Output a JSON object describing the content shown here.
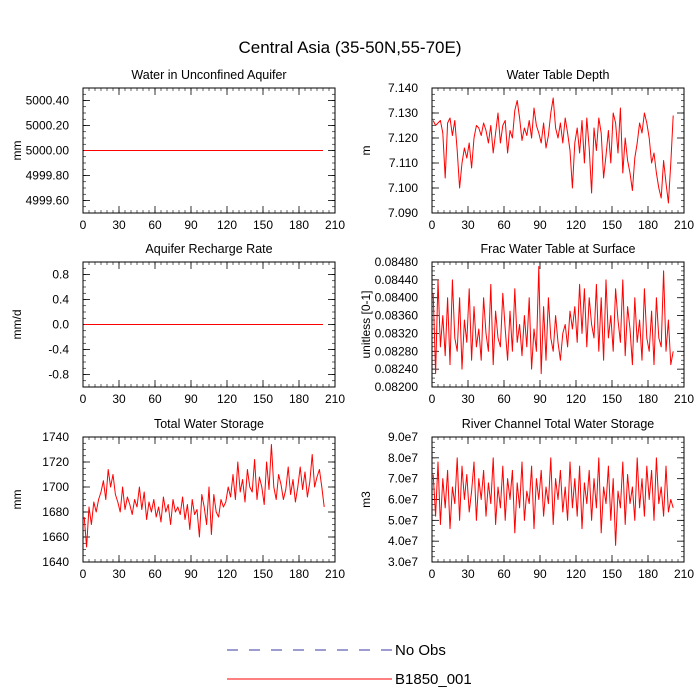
{
  "figure": {
    "title": "Central Asia (35-50N,55-70E)",
    "legend": {
      "items": [
        {
          "label": "No Obs",
          "color": "#3a3aa0",
          "dash": "dashed"
        },
        {
          "label": "B1850_001",
          "color": "#ff0000",
          "dash": "solid"
        }
      ]
    }
  },
  "chart_data": [
    {
      "type": "line",
      "title": "Water in Unconfined Aquifer",
      "ylabel": "mm",
      "xlim": [
        0,
        210
      ],
      "ylim": [
        4999.5,
        5000.5
      ],
      "xticks": [
        "0",
        "30",
        "60",
        "90",
        "120",
        "150",
        "180",
        "210"
      ],
      "yticks": [
        "4999.60",
        "4999.80",
        "5000.00",
        "5000.20",
        "5000.40"
      ],
      "yticks_values": [
        4999.6,
        4999.8,
        5000.0,
        5000.2,
        5000.4
      ],
      "series": [
        {
          "name": "B1850_001",
          "color": "#ff0000",
          "x": [
            1,
            200
          ],
          "y": [
            5000.0,
            5000.0
          ]
        }
      ]
    },
    {
      "type": "line",
      "title": "Water Table Depth",
      "ylabel": "m",
      "xlim": [
        0,
        210
      ],
      "ylim": [
        7.09,
        7.14
      ],
      "xticks": [
        "0",
        "30",
        "60",
        "90",
        "120",
        "150",
        "180",
        "210"
      ],
      "yticks": [
        "7.090",
        "7.100",
        "7.110",
        "7.120",
        "7.130",
        "7.140"
      ],
      "yticks_values": [
        7.09,
        7.1,
        7.11,
        7.12,
        7.13,
        7.14
      ],
      "series": [
        {
          "name": "B1850_001",
          "color": "#ff0000",
          "x": [
            1,
            3,
            5,
            7,
            9,
            11,
            13,
            15,
            17,
            19,
            21,
            23,
            25,
            27,
            29,
            31,
            33,
            35,
            37,
            39,
            41,
            43,
            45,
            47,
            49,
            51,
            53,
            55,
            57,
            59,
            61,
            63,
            65,
            67,
            69,
            71,
            73,
            75,
            77,
            79,
            81,
            83,
            85,
            87,
            89,
            91,
            93,
            95,
            97,
            99,
            101,
            103,
            105,
            107,
            109,
            111,
            113,
            115,
            117,
            119,
            121,
            123,
            125,
            127,
            129,
            131,
            133,
            135,
            137,
            139,
            141,
            143,
            145,
            147,
            149,
            151,
            153,
            155,
            157,
            159,
            161,
            163,
            165,
            167,
            169,
            171,
            173,
            175,
            177,
            179,
            181,
            183,
            185,
            187,
            189,
            191,
            193,
            195,
            197,
            199,
            201
          ],
          "y": [
            7.127,
            7.125,
            7.126,
            7.127,
            7.122,
            7.104,
            7.126,
            7.128,
            7.121,
            7.127,
            7.115,
            7.1,
            7.11,
            7.116,
            7.112,
            7.118,
            7.108,
            7.12,
            7.125,
            7.124,
            7.121,
            7.126,
            7.123,
            7.118,
            7.125,
            7.114,
            7.122,
            7.13,
            7.118,
            7.125,
            7.127,
            7.114,
            7.123,
            7.12,
            7.131,
            7.135,
            7.128,
            7.119,
            7.124,
            7.121,
            7.127,
            7.12,
            7.132,
            7.125,
            7.122,
            7.118,
            7.126,
            7.116,
            7.121,
            7.13,
            7.136,
            7.124,
            7.12,
            7.126,
            7.118,
            7.128,
            7.122,
            7.115,
            7.1,
            7.118,
            7.124,
            7.114,
            7.127,
            7.11,
            7.128,
            7.116,
            7.098,
            7.124,
            7.115,
            7.128,
            7.122,
            7.104,
            7.113,
            7.123,
            7.11,
            7.13,
            7.126,
            7.114,
            7.132,
            7.106,
            7.12,
            7.111,
            7.106,
            7.099,
            7.112,
            7.118,
            7.126,
            7.122,
            7.13,
            7.126,
            7.12,
            7.11,
            7.114,
            7.106,
            7.1,
            7.096,
            7.111,
            7.102,
            7.094,
            7.11,
            7.129
          ]
        }
      ]
    },
    {
      "type": "line",
      "title": "Aquifer Recharge Rate",
      "ylabel": "mm/d",
      "xlim": [
        0,
        210
      ],
      "ylim": [
        -1.0,
        1.0
      ],
      "xticks": [
        "0",
        "30",
        "60",
        "90",
        "120",
        "150",
        "180",
        "210"
      ],
      "yticks": [
        "-0.8",
        "-0.4",
        "0.0",
        "0.4",
        "0.8"
      ],
      "yticks_values": [
        -0.8,
        -0.4,
        0.0,
        0.4,
        0.8
      ],
      "series": [
        {
          "name": "B1850_001",
          "color": "#ff0000",
          "x": [
            1,
            200
          ],
          "y": [
            0.0,
            0.0
          ]
        }
      ]
    },
    {
      "type": "line",
      "title": "Frac Water Table at Surface",
      "ylabel": "unitless [0-1]",
      "xlim": [
        0,
        210
      ],
      "ylim": [
        0.082,
        0.0848
      ],
      "xticks": [
        "0",
        "30",
        "60",
        "90",
        "120",
        "150",
        "180",
        "210"
      ],
      "yticks": [
        "0.08200",
        "0.08240",
        "0.08280",
        "0.08320",
        "0.08360",
        "0.08400",
        "0.08440",
        "0.08480"
      ],
      "yticks_values": [
        0.082,
        0.0824,
        0.0828,
        0.0832,
        0.0836,
        0.084,
        0.0844,
        0.0848
      ],
      "series": [
        {
          "name": "B1850_001",
          "color": "#ff0000",
          "x": [
            1,
            3,
            5,
            7,
            9,
            11,
            13,
            15,
            17,
            19,
            21,
            23,
            25,
            27,
            29,
            31,
            33,
            35,
            37,
            39,
            41,
            43,
            45,
            47,
            49,
            51,
            53,
            55,
            57,
            59,
            61,
            63,
            65,
            67,
            69,
            71,
            73,
            75,
            77,
            79,
            81,
            83,
            85,
            87,
            89,
            91,
            93,
            95,
            97,
            99,
            101,
            103,
            105,
            107,
            109,
            111,
            113,
            115,
            117,
            119,
            121,
            123,
            125,
            127,
            129,
            131,
            133,
            135,
            137,
            139,
            141,
            143,
            145,
            147,
            149,
            151,
            153,
            155,
            157,
            159,
            161,
            163,
            165,
            167,
            169,
            171,
            173,
            175,
            177,
            179,
            181,
            183,
            185,
            187,
            189,
            191,
            193,
            195,
            197,
            199,
            201
          ],
          "y": [
            0.0841,
            0.0823,
            0.0844,
            0.0829,
            0.0836,
            0.0827,
            0.084,
            0.0825,
            0.0844,
            0.0831,
            0.0828,
            0.084,
            0.0824,
            0.0835,
            0.083,
            0.0842,
            0.0826,
            0.0838,
            0.0829,
            0.0833,
            0.0826,
            0.084,
            0.0832,
            0.0828,
            0.0843,
            0.0825,
            0.0837,
            0.0831,
            0.0829,
            0.0841,
            0.0833,
            0.0826,
            0.0837,
            0.0828,
            0.0842,
            0.083,
            0.0834,
            0.0827,
            0.0836,
            0.0829,
            0.084,
            0.0824,
            0.0833,
            0.0828,
            0.0847,
            0.0823,
            0.0838,
            0.0826,
            0.084,
            0.0831,
            0.0828,
            0.0836,
            0.083,
            0.0826,
            0.0832,
            0.0834,
            0.0829,
            0.0837,
            0.0833,
            0.0838,
            0.083,
            0.0843,
            0.0832,
            0.0842,
            0.0829,
            0.084,
            0.0834,
            0.0831,
            0.0843,
            0.0828,
            0.084,
            0.0826,
            0.0844,
            0.0831,
            0.0836,
            0.0828,
            0.0842,
            0.0835,
            0.083,
            0.0844,
            0.0827,
            0.0838,
            0.0833,
            0.0825,
            0.084,
            0.083,
            0.0835,
            0.0826,
            0.0842,
            0.0831,
            0.0828,
            0.0837,
            0.0825,
            0.084,
            0.0831,
            0.0829,
            0.0846,
            0.0828,
            0.0835,
            0.0825,
            0.0828
          ]
        }
      ]
    },
    {
      "type": "line",
      "title": "Total Water Storage",
      "ylabel": "mm",
      "xlim": [
        0,
        210
      ],
      "ylim": [
        1640,
        1740
      ],
      "xticks": [
        "0",
        "30",
        "60",
        "90",
        "120",
        "150",
        "180",
        "210"
      ],
      "yticks": [
        "1640",
        "1660",
        "1680",
        "1700",
        "1720",
        "1740"
      ],
      "yticks_values": [
        1640,
        1660,
        1680,
        1700,
        1720,
        1740
      ],
      "series": [
        {
          "name": "B1850_001",
          "color": "#ff0000",
          "x": [
            1,
            3,
            5,
            7,
            9,
            11,
            13,
            15,
            17,
            19,
            21,
            23,
            25,
            27,
            29,
            31,
            33,
            35,
            37,
            39,
            41,
            43,
            45,
            47,
            49,
            51,
            53,
            55,
            57,
            59,
            61,
            63,
            65,
            67,
            69,
            71,
            73,
            75,
            77,
            79,
            81,
            83,
            85,
            87,
            89,
            91,
            93,
            95,
            97,
            99,
            101,
            103,
            105,
            107,
            109,
            111,
            113,
            115,
            117,
            119,
            121,
            123,
            125,
            127,
            129,
            131,
            133,
            135,
            137,
            139,
            141,
            143,
            145,
            147,
            149,
            151,
            153,
            155,
            157,
            159,
            161,
            163,
            165,
            167,
            169,
            171,
            173,
            175,
            177,
            179,
            181,
            183,
            185,
            187,
            189,
            191,
            193,
            195,
            197,
            199,
            201
          ],
          "y": [
            1676,
            1652,
            1684,
            1670,
            1688,
            1680,
            1690,
            1696,
            1705,
            1690,
            1714,
            1700,
            1710,
            1694,
            1688,
            1680,
            1700,
            1682,
            1692,
            1686,
            1678,
            1690,
            1684,
            1700,
            1682,
            1696,
            1674,
            1688,
            1680,
            1690,
            1676,
            1684,
            1672,
            1692,
            1680,
            1686,
            1670,
            1690,
            1680,
            1684,
            1678,
            1692,
            1674,
            1686,
            1666,
            1690,
            1678,
            1682,
            1660,
            1694,
            1684,
            1670,
            1700,
            1662,
            1694,
            1680,
            1676,
            1690,
            1684,
            1688,
            1700,
            1692,
            1710,
            1690,
            1720,
            1696,
            1706,
            1688,
            1714,
            1700,
            1696,
            1722,
            1690,
            1708,
            1700,
            1686,
            1720,
            1698,
            1734,
            1700,
            1690,
            1710,
            1702,
            1690,
            1698,
            1716,
            1694,
            1706,
            1688,
            1700,
            1716,
            1698,
            1712,
            1692,
            1704,
            1726,
            1700,
            1708,
            1714,
            1700,
            1684
          ]
        }
      ]
    },
    {
      "type": "line",
      "title": "River Channel Total Water Storage",
      "ylabel": "m3",
      "xlim": [
        0,
        210
      ],
      "ylim": [
        30000000,
        90000000
      ],
      "xticks": [
        "0",
        "30",
        "60",
        "90",
        "120",
        "150",
        "180",
        "210"
      ],
      "yticks": [
        "3.0e7",
        "4.0e7",
        "5.0e7",
        "6.0e7",
        "7.0e7",
        "8.0e7",
        "9.0e7"
      ],
      "yticks_values": [
        30000000,
        40000000,
        50000000,
        60000000,
        70000000,
        80000000,
        90000000
      ],
      "series": [
        {
          "name": "B1850_001",
          "color": "#ff0000",
          "x": [
            1,
            3,
            5,
            7,
            9,
            11,
            13,
            15,
            17,
            19,
            21,
            23,
            25,
            27,
            29,
            31,
            33,
            35,
            37,
            39,
            41,
            43,
            45,
            47,
            49,
            51,
            53,
            55,
            57,
            59,
            61,
            63,
            65,
            67,
            69,
            71,
            73,
            75,
            77,
            79,
            81,
            83,
            85,
            87,
            89,
            91,
            93,
            95,
            97,
            99,
            101,
            103,
            105,
            107,
            109,
            111,
            113,
            115,
            117,
            119,
            121,
            123,
            125,
            127,
            129,
            131,
            133,
            135,
            137,
            139,
            141,
            143,
            145,
            147,
            149,
            151,
            153,
            155,
            157,
            159,
            161,
            163,
            165,
            167,
            169,
            171,
            173,
            175,
            177,
            179,
            181,
            183,
            185,
            187,
            189,
            191,
            193,
            195,
            197,
            199,
            201
          ],
          "y": [
            72000000,
            52000000,
            78000000,
            48000000,
            70000000,
            56000000,
            74000000,
            46000000,
            66000000,
            58000000,
            80000000,
            50000000,
            76000000,
            60000000,
            72000000,
            54000000,
            64000000,
            78000000,
            50000000,
            70000000,
            60000000,
            74000000,
            52000000,
            68000000,
            58000000,
            80000000,
            48000000,
            66000000,
            56000000,
            76000000,
            50000000,
            70000000,
            60000000,
            74000000,
            44000000,
            68000000,
            56000000,
            78000000,
            50000000,
            64000000,
            58000000,
            76000000,
            46000000,
            70000000,
            60000000,
            74000000,
            52000000,
            66000000,
            58000000,
            80000000,
            48000000,
            70000000,
            60000000,
            74000000,
            54000000,
            66000000,
            50000000,
            78000000,
            56000000,
            70000000,
            52000000,
            76000000,
            46000000,
            68000000,
            58000000,
            74000000,
            50000000,
            70000000,
            56000000,
            80000000,
            44000000,
            66000000,
            58000000,
            76000000,
            50000000,
            70000000,
            38000000,
            64000000,
            56000000,
            78000000,
            48000000,
            72000000,
            58000000,
            66000000,
            50000000,
            80000000,
            56000000,
            70000000,
            52000000,
            76000000,
            60000000,
            74000000,
            50000000,
            80000000,
            58000000,
            66000000,
            52000000,
            76000000,
            54000000,
            60000000,
            56000000
          ]
        }
      ]
    }
  ]
}
